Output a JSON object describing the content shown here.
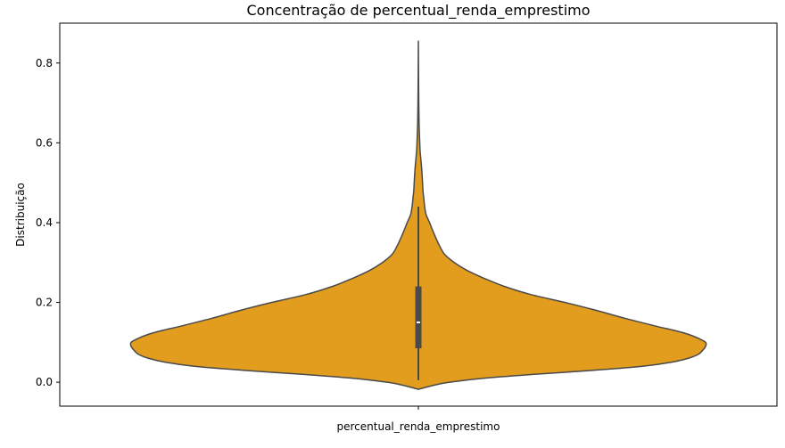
{
  "chart_data": {
    "type": "violin",
    "title": "Concentração de percentual_renda_emprestimo",
    "xlabel": "percentual_renda_emprestimo",
    "ylabel": "Distribuição",
    "ylim": [
      -0.06,
      0.9
    ],
    "yticks": [
      0.0,
      0.2,
      0.4,
      0.6,
      0.8
    ],
    "ytick_labels": [
      "0.0",
      "0.2",
      "0.4",
      "0.6",
      "0.8"
    ],
    "grid": false,
    "colors": {
      "fill": "#e29d1f",
      "outline": "#4a4a4a",
      "box": "#4a4a4a",
      "median": "#ffffff"
    },
    "violin": {
      "max_half_width": 1.0,
      "profile": [
        [
          -0.018,
          0.0
        ],
        [
          -0.012,
          0.03
        ],
        [
          -0.005,
          0.07
        ],
        [
          0.0,
          0.11
        ],
        [
          0.01,
          0.23
        ],
        [
          0.02,
          0.41
        ],
        [
          0.03,
          0.61
        ],
        [
          0.04,
          0.78
        ],
        [
          0.05,
          0.88
        ],
        [
          0.06,
          0.94
        ],
        [
          0.07,
          0.975
        ],
        [
          0.08,
          0.99
        ],
        [
          0.09,
          1.0
        ],
        [
          0.1,
          1.0
        ],
        [
          0.11,
          0.975
        ],
        [
          0.12,
          0.94
        ],
        [
          0.13,
          0.89
        ],
        [
          0.14,
          0.83
        ],
        [
          0.16,
          0.72
        ],
        [
          0.18,
          0.62
        ],
        [
          0.2,
          0.51
        ],
        [
          0.22,
          0.39
        ],
        [
          0.24,
          0.3
        ],
        [
          0.26,
          0.23
        ],
        [
          0.28,
          0.17
        ],
        [
          0.3,
          0.125
        ],
        [
          0.32,
          0.092
        ],
        [
          0.34,
          0.075
        ],
        [
          0.36,
          0.062
        ],
        [
          0.38,
          0.05
        ],
        [
          0.4,
          0.039
        ],
        [
          0.42,
          0.027
        ],
        [
          0.44,
          0.022
        ],
        [
          0.46,
          0.019
        ],
        [
          0.48,
          0.016
        ],
        [
          0.5,
          0.0145
        ],
        [
          0.52,
          0.013
        ],
        [
          0.54,
          0.011
        ],
        [
          0.56,
          0.0085
        ],
        [
          0.58,
          0.006
        ],
        [
          0.6,
          0.0048
        ],
        [
          0.62,
          0.0038
        ],
        [
          0.65,
          0.0025
        ],
        [
          0.7,
          0.0015
        ],
        [
          0.75,
          0.0008
        ],
        [
          0.8,
          0.0004
        ],
        [
          0.855,
          0.0
        ]
      ]
    },
    "box": {
      "whisker_low": 0.005,
      "q1": 0.085,
      "median": 0.15,
      "q3": 0.24,
      "whisker_high": 0.44
    }
  }
}
